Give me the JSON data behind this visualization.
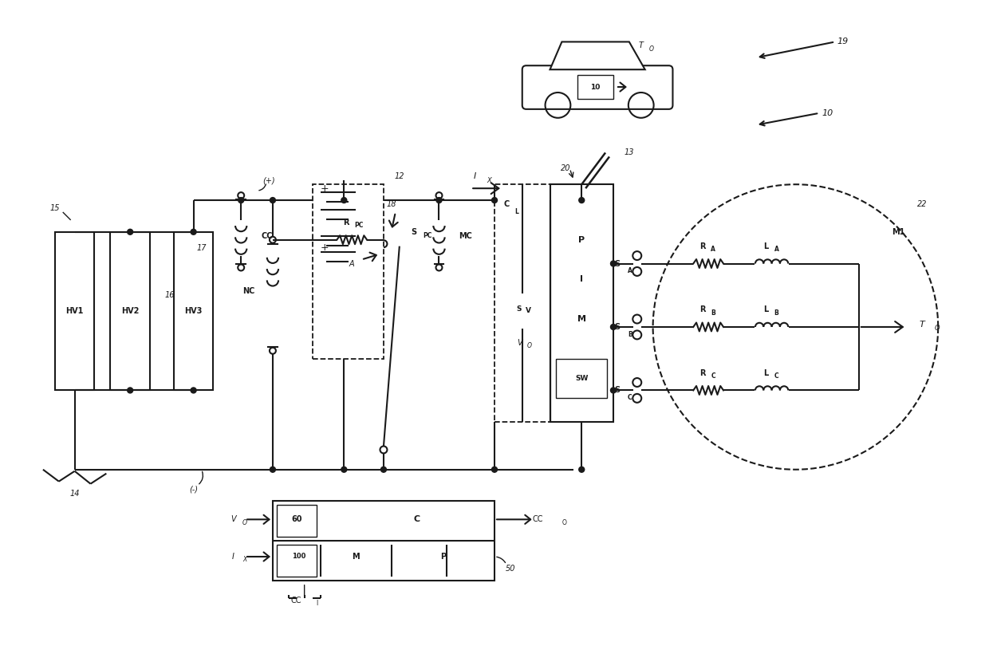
{
  "bg": "#ffffff",
  "lc": "#1a1a1a",
  "lw": 1.5,
  "figsize": [
    12.4,
    8.1
  ],
  "dpi": 100,
  "xlim": [
    0,
    124
  ],
  "ylim": [
    0,
    81
  ]
}
